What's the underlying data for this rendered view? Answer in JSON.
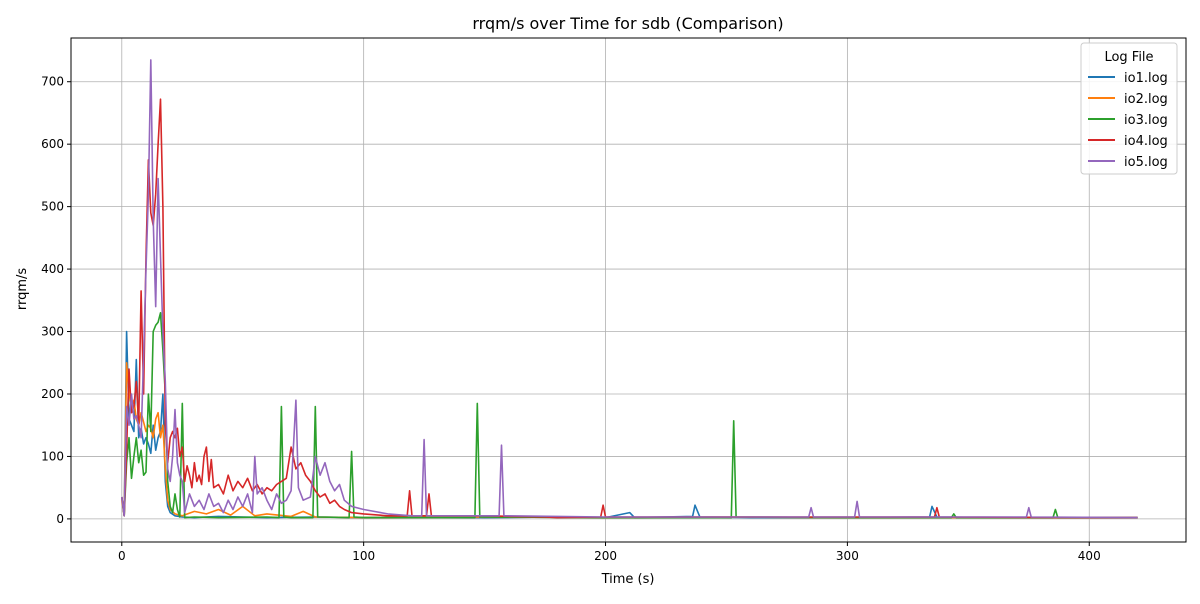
{
  "chart_data": {
    "type": "line",
    "title": "rrqm/s over Time for sdb (Comparison)",
    "xlabel": "Time (s)",
    "ylabel": "rrqm/s",
    "xlim": [
      -21,
      440
    ],
    "ylim": [
      -37,
      770
    ],
    "xticks": [
      0,
      100,
      200,
      300,
      400
    ],
    "yticks": [
      0,
      100,
      200,
      300,
      400,
      500,
      600,
      700
    ],
    "grid": true,
    "legend": {
      "title": "Log File",
      "placement": "top-right"
    },
    "series": [
      {
        "name": "io1.log",
        "color": "#1f77b4",
        "points": [
          [
            0,
            35
          ],
          [
            1,
            5
          ],
          [
            2,
            300
          ],
          [
            3,
            160
          ],
          [
            4,
            150
          ],
          [
            5,
            140
          ],
          [
            6,
            255
          ],
          [
            7,
            130
          ],
          [
            8,
            145
          ],
          [
            9,
            120
          ],
          [
            10,
            130
          ],
          [
            11,
            120
          ],
          [
            12,
            105
          ],
          [
            13,
            150
          ],
          [
            14,
            110
          ],
          [
            15,
            130
          ],
          [
            16,
            140
          ],
          [
            17,
            200
          ],
          [
            18,
            60
          ],
          [
            19,
            20
          ],
          [
            20,
            10
          ],
          [
            22,
            5
          ],
          [
            25,
            3
          ],
          [
            30,
            2
          ],
          [
            40,
            4
          ],
          [
            60,
            2
          ],
          [
            80,
            3
          ],
          [
            100,
            2
          ],
          [
            120,
            3
          ],
          [
            150,
            2
          ],
          [
            180,
            3
          ],
          [
            200,
            2
          ],
          [
            210,
            10
          ],
          [
            212,
            2
          ],
          [
            236,
            4
          ],
          [
            237,
            22
          ],
          [
            239,
            3
          ],
          [
            260,
            2
          ],
          [
            300,
            2
          ],
          [
            334,
            3
          ],
          [
            335,
            20
          ],
          [
            337,
            3
          ],
          [
            360,
            2
          ],
          [
            400,
            2
          ],
          [
            420,
            2
          ]
        ]
      },
      {
        "name": "io2.log",
        "color": "#ff7f0e",
        "points": [
          [
            0,
            30
          ],
          [
            1,
            5
          ],
          [
            2,
            250
          ],
          [
            3,
            200
          ],
          [
            4,
            180
          ],
          [
            5,
            190
          ],
          [
            6,
            160
          ],
          [
            7,
            150
          ],
          [
            8,
            170
          ],
          [
            9,
            155
          ],
          [
            10,
            140
          ],
          [
            11,
            150
          ],
          [
            12,
            145
          ],
          [
            13,
            130
          ],
          [
            14,
            160
          ],
          [
            15,
            170
          ],
          [
            16,
            130
          ],
          [
            17,
            150
          ],
          [
            18,
            80
          ],
          [
            19,
            30
          ],
          [
            20,
            15
          ],
          [
            22,
            8
          ],
          [
            25,
            5
          ],
          [
            30,
            12
          ],
          [
            35,
            8
          ],
          [
            40,
            15
          ],
          [
            45,
            6
          ],
          [
            50,
            20
          ],
          [
            55,
            5
          ],
          [
            60,
            8
          ],
          [
            70,
            4
          ],
          [
            75,
            12
          ],
          [
            80,
            3
          ],
          [
            100,
            2
          ],
          [
            150,
            3
          ],
          [
            200,
            2
          ],
          [
            250,
            3
          ],
          [
            300,
            2
          ],
          [
            350,
            2
          ],
          [
            400,
            2
          ],
          [
            420,
            2
          ]
        ]
      },
      {
        "name": "io3.log",
        "color": "#2ca02c",
        "points": [
          [
            0,
            35
          ],
          [
            1,
            5
          ],
          [
            2,
            90
          ],
          [
            3,
            130
          ],
          [
            4,
            65
          ],
          [
            5,
            100
          ],
          [
            6,
            130
          ],
          [
            7,
            90
          ],
          [
            8,
            110
          ],
          [
            9,
            70
          ],
          [
            10,
            75
          ],
          [
            11,
            200
          ],
          [
            12,
            140
          ],
          [
            13,
            300
          ],
          [
            14,
            310
          ],
          [
            15,
            315
          ],
          [
            16,
            330
          ],
          [
            17,
            270
          ],
          [
            18,
            200
          ],
          [
            19,
            60
          ],
          [
            20,
            20
          ],
          [
            21,
            10
          ],
          [
            22,
            40
          ],
          [
            23,
            15
          ],
          [
            24,
            3
          ],
          [
            25,
            185
          ],
          [
            26,
            2
          ],
          [
            30,
            3
          ],
          [
            40,
            2
          ],
          [
            60,
            3
          ],
          [
            65,
            2
          ],
          [
            66,
            180
          ],
          [
            67,
            3
          ],
          [
            70,
            2
          ],
          [
            79,
            2
          ],
          [
            80,
            180
          ],
          [
            81,
            3
          ],
          [
            94,
            2
          ],
          [
            95,
            108
          ],
          [
            96,
            3
          ],
          [
            100,
            2
          ],
          [
            146,
            2
          ],
          [
            147,
            185
          ],
          [
            148,
            3
          ],
          [
            200,
            2
          ],
          [
            252,
            2
          ],
          [
            253,
            157
          ],
          [
            254,
            3
          ],
          [
            300,
            2
          ],
          [
            343,
            2
          ],
          [
            344,
            8
          ],
          [
            345,
            2
          ],
          [
            385,
            2
          ],
          [
            386,
            15
          ],
          [
            387,
            2
          ],
          [
            420,
            2
          ]
        ]
      },
      {
        "name": "io4.log",
        "color": "#d62728",
        "points": [
          [
            0,
            35
          ],
          [
            1,
            5
          ],
          [
            2,
            110
          ],
          [
            3,
            240
          ],
          [
            4,
            170
          ],
          [
            5,
            180
          ],
          [
            6,
            220
          ],
          [
            7,
            150
          ],
          [
            8,
            365
          ],
          [
            9,
            200
          ],
          [
            10,
            420
          ],
          [
            11,
            575
          ],
          [
            12,
            490
          ],
          [
            13,
            470
          ],
          [
            14,
            520
          ],
          [
            15,
            600
          ],
          [
            16,
            672
          ],
          [
            17,
            500
          ],
          [
            18,
            150
          ],
          [
            19,
            90
          ],
          [
            20,
            130
          ],
          [
            21,
            140
          ],
          [
            22,
            130
          ],
          [
            23,
            145
          ],
          [
            24,
            100
          ],
          [
            25,
            115
          ],
          [
            26,
            60
          ],
          [
            27,
            85
          ],
          [
            28,
            70
          ],
          [
            29,
            50
          ],
          [
            30,
            90
          ],
          [
            31,
            60
          ],
          [
            32,
            70
          ],
          [
            33,
            55
          ],
          [
            34,
            100
          ],
          [
            35,
            115
          ],
          [
            36,
            60
          ],
          [
            37,
            95
          ],
          [
            38,
            50
          ],
          [
            40,
            55
          ],
          [
            42,
            40
          ],
          [
            44,
            70
          ],
          [
            46,
            45
          ],
          [
            48,
            60
          ],
          [
            50,
            50
          ],
          [
            52,
            65
          ],
          [
            54,
            45
          ],
          [
            56,
            55
          ],
          [
            58,
            40
          ],
          [
            60,
            50
          ],
          [
            62,
            45
          ],
          [
            64,
            55
          ],
          [
            66,
            60
          ],
          [
            68,
            65
          ],
          [
            70,
            115
          ],
          [
            72,
            80
          ],
          [
            74,
            90
          ],
          [
            76,
            70
          ],
          [
            78,
            60
          ],
          [
            80,
            45
          ],
          [
            82,
            35
          ],
          [
            84,
            40
          ],
          [
            86,
            25
          ],
          [
            88,
            30
          ],
          [
            90,
            20
          ],
          [
            92,
            15
          ],
          [
            95,
            10
          ],
          [
            100,
            8
          ],
          [
            110,
            5
          ],
          [
            118,
            5
          ],
          [
            119,
            45
          ],
          [
            120,
            5
          ],
          [
            126,
            5
          ],
          [
            127,
            40
          ],
          [
            128,
            5
          ],
          [
            150,
            5
          ],
          [
            175,
            3
          ],
          [
            180,
            2
          ],
          [
            198,
            3
          ],
          [
            199,
            22
          ],
          [
            200,
            3
          ],
          [
            250,
            3
          ],
          [
            336,
            3
          ],
          [
            337,
            18
          ],
          [
            338,
            3
          ],
          [
            400,
            2
          ],
          [
            420,
            2
          ]
        ]
      },
      {
        "name": "io5.log",
        "color": "#9467bd",
        "points": [
          [
            0,
            35
          ],
          [
            1,
            5
          ],
          [
            2,
            180
          ],
          [
            3,
            150
          ],
          [
            4,
            200
          ],
          [
            5,
            160
          ],
          [
            6,
            165
          ],
          [
            7,
            150
          ],
          [
            8,
            130
          ],
          [
            9,
            260
          ],
          [
            10,
            400
          ],
          [
            11,
            520
          ],
          [
            12,
            735
          ],
          [
            13,
            480
          ],
          [
            14,
            340
          ],
          [
            15,
            545
          ],
          [
            16,
            420
          ],
          [
            17,
            300
          ],
          [
            18,
            220
          ],
          [
            19,
            80
          ],
          [
            20,
            60
          ],
          [
            21,
            100
          ],
          [
            22,
            175
          ],
          [
            23,
            90
          ],
          [
            24,
            70
          ],
          [
            25,
            60
          ],
          [
            26,
            10
          ],
          [
            28,
            40
          ],
          [
            30,
            20
          ],
          [
            32,
            30
          ],
          [
            34,
            15
          ],
          [
            36,
            40
          ],
          [
            38,
            20
          ],
          [
            40,
            25
          ],
          [
            42,
            10
          ],
          [
            44,
            30
          ],
          [
            46,
            15
          ],
          [
            48,
            35
          ],
          [
            50,
            20
          ],
          [
            52,
            40
          ],
          [
            54,
            10
          ],
          [
            55,
            100
          ],
          [
            56,
            40
          ],
          [
            58,
            50
          ],
          [
            60,
            30
          ],
          [
            62,
            15
          ],
          [
            64,
            40
          ],
          [
            66,
            25
          ],
          [
            68,
            30
          ],
          [
            70,
            45
          ],
          [
            72,
            190
          ],
          [
            73,
            50
          ],
          [
            75,
            30
          ],
          [
            78,
            35
          ],
          [
            80,
            100
          ],
          [
            82,
            70
          ],
          [
            84,
            90
          ],
          [
            86,
            60
          ],
          [
            88,
            45
          ],
          [
            90,
            55
          ],
          [
            92,
            30
          ],
          [
            95,
            20
          ],
          [
            100,
            15
          ],
          [
            110,
            8
          ],
          [
            120,
            5
          ],
          [
            124,
            5
          ],
          [
            125,
            127
          ],
          [
            126,
            5
          ],
          [
            150,
            5
          ],
          [
            156,
            5
          ],
          [
            157,
            118
          ],
          [
            158,
            5
          ],
          [
            200,
            3
          ],
          [
            284,
            3
          ],
          [
            285,
            18
          ],
          [
            286,
            3
          ],
          [
            303,
            3
          ],
          [
            304,
            28
          ],
          [
            305,
            3
          ],
          [
            374,
            3
          ],
          [
            375,
            18
          ],
          [
            376,
            3
          ],
          [
            420,
            2
          ]
        ]
      }
    ]
  }
}
